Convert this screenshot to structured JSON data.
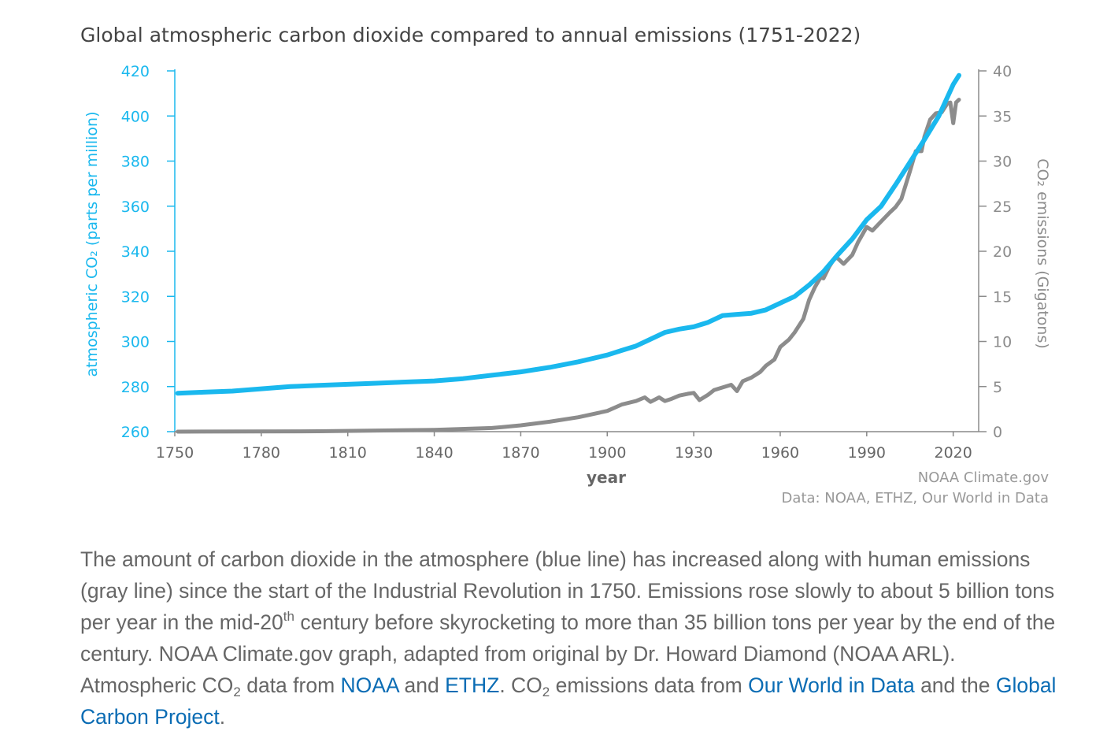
{
  "colors": {
    "co2": "#1ab8ee",
    "emissions": "#8c8c8c",
    "caption_link": "#0a6cb4"
  },
  "chart_data": {
    "type": "line",
    "title": "Global atmospheric carbon dioxide compared to annual emissions (1751-2022)",
    "xlabel": "year",
    "ylabel_left": "atmospheric CO₂ (parts per million)",
    "ylabel_right": "CO₂ emissions (Gigatons)",
    "xlim": [
      1750,
      2022
    ],
    "ylim_left": [
      260,
      420
    ],
    "ylim_right": [
      0,
      40
    ],
    "x_ticks": [
      1750,
      1780,
      1810,
      1840,
      1870,
      1900,
      1930,
      1960,
      1990,
      2020
    ],
    "y_left_ticks": [
      260,
      280,
      300,
      320,
      340,
      360,
      380,
      400,
      420
    ],
    "y_right_ticks": [
      0,
      5,
      10,
      15,
      20,
      25,
      30,
      35,
      40
    ],
    "grid": false,
    "series": [
      {
        "axis": "left",
        "x": [
          1751,
          1760,
          1770,
          1780,
          1790,
          1800,
          1810,
          1820,
          1830,
          1840,
          1850,
          1860,
          1870,
          1880,
          1890,
          1900,
          1905,
          1910,
          1915,
          1920,
          1925,
          1930,
          1935,
          1940,
          1945,
          1950,
          1955,
          1960,
          1965,
          1970,
          1975,
          1980,
          1985,
          1990,
          1995,
          2000,
          2005,
          2010,
          2015,
          2020,
          2022
        ],
        "y": [
          277,
          277.5,
          278,
          279,
          280,
          280.5,
          281,
          281.5,
          282,
          282.5,
          283.5,
          285,
          286.5,
          288.5,
          291,
          294,
          296,
          298,
          301,
          304,
          305.5,
          306.5,
          308.5,
          311.5,
          312,
          312.5,
          314,
          317,
          320,
          325,
          331,
          338.5,
          345.5,
          354,
          360,
          369.5,
          379.5,
          389.5,
          400,
          414,
          418
        ]
      },
      {
        "axis": "right",
        "x": [
          1751,
          1800,
          1840,
          1860,
          1870,
          1880,
          1890,
          1900,
          1905,
          1910,
          1913,
          1915,
          1918,
          1920,
          1922,
          1925,
          1928,
          1930,
          1932,
          1935,
          1937,
          1940,
          1943,
          1945,
          1947,
          1950,
          1953,
          1955,
          1958,
          1960,
          1963,
          1965,
          1968,
          1970,
          1972,
          1974,
          1975,
          1977,
          1979,
          1980,
          1982,
          1985,
          1987,
          1990,
          1992,
          1995,
          1998,
          2000,
          2002,
          2005,
          2007,
          2009,
          2010,
          2012,
          2014,
          2016,
          2018,
          2019,
          2020,
          2021,
          2022
        ],
        "y": [
          0,
          0.04,
          0.2,
          0.4,
          0.7,
          1.1,
          1.6,
          2.3,
          3.0,
          3.4,
          3.8,
          3.3,
          3.8,
          3.4,
          3.6,
          4.0,
          4.2,
          4.3,
          3.5,
          4.1,
          4.6,
          4.9,
          5.2,
          4.5,
          5.6,
          6.0,
          6.6,
          7.3,
          8.0,
          9.4,
          10.2,
          11.0,
          12.5,
          14.6,
          16.0,
          17.1,
          17.0,
          18.3,
          19.3,
          19.2,
          18.6,
          19.6,
          21.0,
          22.7,
          22.3,
          23.3,
          24.3,
          24.9,
          25.8,
          28.9,
          31.1,
          31.1,
          32.7,
          34.6,
          35.3,
          35.4,
          36.4,
          36.5,
          34.2,
          36.5,
          36.8
        ]
      }
    ],
    "credit": "NOAA Climate.gov",
    "source": "Data: NOAA, ETHZ, Our World in Data"
  },
  "caption": {
    "p1": "The amount of carbon dioxide in the atmosphere (blue line) has increased along with human emissions (gray line) since the start of the Industrial Revolution in 1750. Emissions rose slowly to about 5 billion tons per year in the mid-20",
    "sup_th": "th",
    "p2": " century before skyrocketing to more than 35 billion tons per year by the end of the century. NOAA Climate.gov graph, adapted from original by Dr. Howard Diamond (NOAA ARL). Atmospheric CO",
    "sub_2a": "2",
    "p3": " data from ",
    "link_noaa": "NOAA",
    "p4": " and ",
    "link_ethz": "ETHZ",
    "p5": ". CO",
    "sub_2b": "2",
    "p6": " emissions data from ",
    "link_owid": "Our World in Data",
    "p7": " and the ",
    "link_gcp": "Global Carbon Project",
    "p8": "."
  }
}
